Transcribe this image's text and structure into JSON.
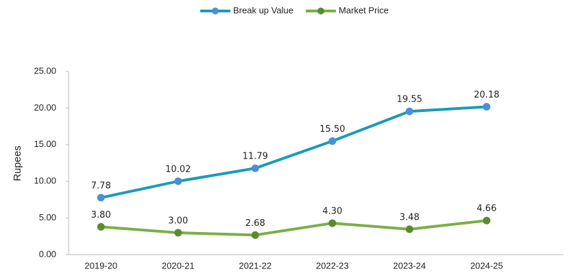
{
  "chart_data": {
    "type": "line",
    "y_label": "Rupees",
    "categories": [
      "2019-20",
      "2020-21",
      "2021-22",
      "2022-23",
      "2023-24",
      "2024-25"
    ],
    "series": [
      {
        "name": "Break up Value",
        "color": "#1b9ab8",
        "marker_color": "#4a8fd8",
        "values": [
          7.78,
          10.02,
          11.79,
          15.5,
          19.55,
          20.18
        ],
        "value_labels": [
          "7.78",
          "10.02",
          "11.79",
          "15.50",
          "19.55",
          "20.18"
        ]
      },
      {
        "name": "Market Price",
        "color": "#7aaf45",
        "marker_color": "#5b8a2f",
        "values": [
          3.8,
          3.0,
          2.68,
          4.3,
          3.48,
          4.66
        ],
        "value_labels": [
          "3.80",
          "3.00",
          "2.68",
          "4.30",
          "3.48",
          "4.66"
        ]
      }
    ],
    "ylim": [
      0,
      25
    ],
    "yticks": [
      {
        "value": 0,
        "label": "0.00"
      },
      {
        "value": 5,
        "label": "5.00"
      },
      {
        "value": 10,
        "label": "10.00"
      },
      {
        "value": 15,
        "label": "15.00"
      },
      {
        "value": 20,
        "label": "20.00"
      },
      {
        "value": 25,
        "label": "25.00"
      }
    ],
    "legend": "top"
  }
}
